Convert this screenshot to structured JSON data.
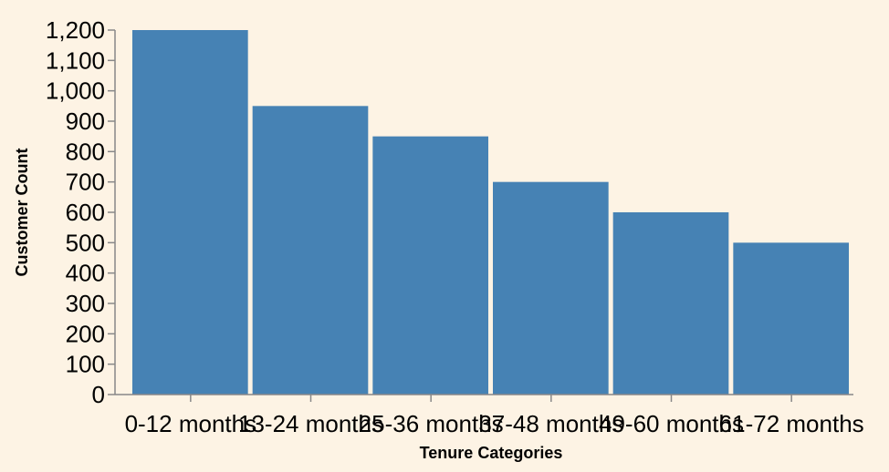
{
  "chart_data": {
    "type": "bar",
    "categories": [
      "0-12 months",
      "13-24 months",
      "25-36 months",
      "37-48 months",
      "49-60 months",
      "61-72 months"
    ],
    "values": [
      1200,
      950,
      850,
      700,
      600,
      500
    ],
    "xlabel": "Tenure Categories",
    "ylabel": "Customer Count",
    "ylim": [
      0,
      1200
    ],
    "yticks": [
      0,
      100,
      200,
      300,
      400,
      500,
      600,
      700,
      800,
      900,
      1000,
      1100,
      1200
    ],
    "grid": false,
    "legend": "none",
    "bar_color": "#4682b4",
    "background_color": "#fdf3e4"
  }
}
